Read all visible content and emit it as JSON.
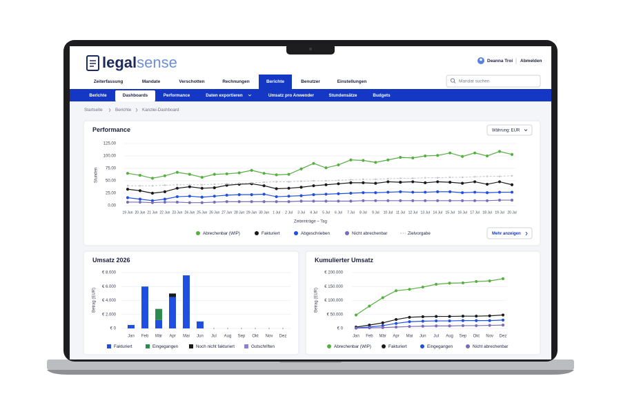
{
  "header": {
    "logo_left": "legal",
    "logo_right": "sense",
    "user": "Deanna Troi",
    "logout": "Abmelden",
    "search_placeholder": "Mandat suchen"
  },
  "nav": {
    "items": [
      "Zeiterfassung",
      "Mandate",
      "Verschotten",
      "Rechnungen",
      "Berichte",
      "Benutzer",
      "Einstellungen"
    ],
    "active": 4
  },
  "subnav": {
    "items": [
      "Berichte",
      "Dashboards",
      "Performance",
      "Daten exportieren",
      "Umsatz pro Anwender",
      "Stundensätze",
      "Budgets"
    ],
    "active": 1
  },
  "breadcrumb": [
    "Startseite",
    "Berichte",
    "Kanzlei-Dashboard"
  ],
  "chart_data": [
    {
      "type": "line",
      "title": "Performance",
      "currency_select": "Währung: EUR",
      "button": "Mehr anzeigen",
      "y_label": "Stunden",
      "x_label": "Zeiteinträge – Tag",
      "categories": [
        "19 Jun",
        "20 Jun",
        "21 Jun",
        "22 Jun",
        "23 Jun",
        "24 Jun",
        "25 Jun",
        "26 Jun",
        "27 Jun",
        "28 Jun",
        "29 Jun",
        "30 Jun",
        "1 Jul",
        "2 Jul",
        "3 Jul",
        "4 Jul",
        "5 Jul",
        "6 Jul",
        "7 Jul",
        "8 Jul",
        "9 Jul",
        "10 Jul",
        "11 Jul",
        "12 Jul",
        "13 Jul",
        "14 Jul",
        "15 Jul",
        "16 Jul",
        "17 Jul",
        "18 Jul",
        "19 Jul",
        "20 Jul"
      ],
      "ylim": [
        0,
        125
      ],
      "yticks": [
        {
          "value": 0,
          "label": "0.00"
        },
        {
          "value": 25,
          "label": "25.00"
        },
        {
          "value": 50,
          "label": "50.00"
        },
        {
          "value": 75,
          "label": "75.00"
        },
        {
          "value": 100,
          "label": "100.00"
        },
        {
          "value": 125,
          "label": "125.00"
        }
      ],
      "grid": true,
      "series": [
        {
          "name": "Abrechenbar (WIP)",
          "color": "#55b040",
          "values": [
            65,
            61,
            55,
            60,
            67,
            63,
            57,
            63,
            64,
            66,
            71,
            65,
            62,
            63,
            74,
            85,
            76,
            82,
            92,
            91,
            87,
            92,
            97,
            96,
            100,
            101,
            106,
            99,
            106,
            100,
            109,
            103
          ]
        },
        {
          "name": "Fakturiert",
          "color": "#1a1a1a",
          "values": [
            33,
            30,
            25,
            28,
            35,
            38,
            35,
            36,
            41,
            43,
            44,
            40,
            34,
            35,
            37,
            40,
            42,
            44,
            46,
            46,
            45,
            48,
            47,
            48,
            46,
            48,
            47,
            45,
            48,
            43,
            48,
            42
          ]
        },
        {
          "name": "Abgeschrieben",
          "color": "#1f4fe0",
          "values": [
            16,
            13,
            10,
            13,
            18,
            19,
            17,
            19,
            21,
            22,
            22,
            23,
            18,
            19,
            20,
            22,
            23,
            24,
            25,
            26,
            26,
            27,
            28,
            27,
            27,
            28,
            28,
            26,
            27,
            26,
            27,
            27
          ]
        },
        {
          "name": "Nicht abrechenbar",
          "color": "#7b6bb8",
          "values": [
            7,
            7,
            6,
            7,
            7,
            6,
            6,
            7,
            8,
            8,
            8,
            8,
            8,
            8,
            9,
            9,
            9,
            9,
            9,
            10,
            10,
            10,
            10,
            10,
            10,
            10,
            10,
            10,
            10,
            10,
            11,
            11
          ]
        },
        {
          "name": "Zielvorgabe",
          "color": "#c4c7cf",
          "dashed": true,
          "values": [
            40,
            40,
            40,
            41,
            42,
            42,
            42,
            43,
            44,
            45,
            46,
            47,
            48,
            48,
            49,
            50,
            50,
            51,
            52,
            53,
            53,
            54,
            55,
            55,
            56,
            56,
            57,
            57,
            58,
            59,
            59,
            60
          ]
        }
      ]
    },
    {
      "type": "bar",
      "stacked": true,
      "title": "Umsatz 2026",
      "y_label": "Betrag (EUR)",
      "categories": [
        "Jan",
        "Feb",
        "Mär",
        "Apr",
        "Mai",
        "Jun",
        "Jul",
        "Aug",
        "Sep",
        "Okt",
        "Nov",
        "Dez"
      ],
      "ylim": [
        0,
        8000
      ],
      "yticks": [
        {
          "value": 0,
          "label": "€ 0"
        },
        {
          "value": 2000,
          "label": "€ 2.000"
        },
        {
          "value": 4000,
          "label": "€ 4.000"
        },
        {
          "value": 6000,
          "label": "€ 6.000"
        },
        {
          "value": 8000,
          "label": "€ 8.000"
        }
      ],
      "grid": true,
      "series": [
        {
          "name": "Fakturiert",
          "color": "#1f4fe0",
          "values": [
            500,
            6000,
            1200,
            4500,
            7600,
            1000,
            0,
            0,
            0,
            0,
            0,
            0
          ]
        },
        {
          "name": "Eingegangen",
          "color": "#2e8b4e",
          "values": [
            0,
            0,
            1600,
            0,
            0,
            0,
            0,
            0,
            0,
            0,
            0,
            0
          ]
        },
        {
          "name": "Noch nicht fakturiert",
          "color": "#1a1a1a",
          "values": [
            0,
            0,
            0,
            500,
            0,
            0,
            0,
            0,
            0,
            0,
            0,
            0
          ]
        },
        {
          "name": "Gutschriften",
          "color": "#8f7fd0",
          "values": [
            0,
            0,
            0,
            0,
            0,
            0,
            0,
            0,
            0,
            0,
            0,
            0
          ]
        }
      ]
    },
    {
      "type": "line",
      "title": "Kumulierter Umsatz",
      "y_label": "Betrag (EUR)",
      "categories": [
        "Jan",
        "Feb",
        "Mär",
        "Apr",
        "Mai",
        "Jun",
        "Jul",
        "Aug",
        "Sep",
        "Okt",
        "Nov",
        "Dez"
      ],
      "ylim": [
        0,
        200000
      ],
      "yticks": [
        {
          "value": 0,
          "label": "€ 0"
        },
        {
          "value": 50000,
          "label": "€ 50.000"
        },
        {
          "value": 100000,
          "label": "€ 100.000"
        },
        {
          "value": 150000,
          "label": "€ 150.000"
        },
        {
          "value": 200000,
          "label": "€ 200.000"
        }
      ],
      "grid": true,
      "series": [
        {
          "name": "Abrechenbar (WIP)",
          "color": "#55b040",
          "values": [
            48000,
            80000,
            110000,
            135000,
            140000,
            148000,
            158000,
            162000,
            163000,
            168000,
            170000,
            178000
          ]
        },
        {
          "name": "Fakturiert",
          "color": "#1a1a1a",
          "values": [
            5000,
            12000,
            20000,
            32000,
            40000,
            42000,
            43000,
            43000,
            44000,
            44000,
            45000,
            48000
          ]
        },
        {
          "name": "Eingegangen",
          "color": "#1f4fe0",
          "values": [
            2000,
            5000,
            10000,
            18000,
            24000,
            26000,
            27000,
            27000,
            28000,
            28000,
            28000,
            30000
          ]
        },
        {
          "name": "Nicht abrechenbar",
          "color": "#7b6bb8",
          "values": [
            1000,
            2000,
            3000,
            5000,
            7000,
            8000,
            9000,
            9000,
            10000,
            10000,
            11000,
            12000
          ]
        }
      ]
    }
  ]
}
